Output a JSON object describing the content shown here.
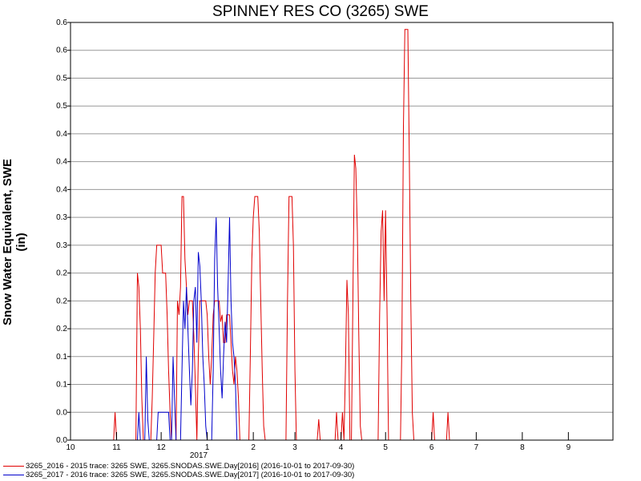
{
  "chart_data": {
    "type": "line",
    "title": "SPINNEY RES CO (3265) SWE",
    "ylabel": "Snow Water Equivalent, SWE (in)",
    "xlabel": "",
    "year_label": "2017",
    "ylim": [
      0,
      0.6
    ],
    "y_tick_labels": [
      "0.0",
      "0.0",
      "0.1",
      "0.1",
      "0.2",
      "0.2",
      "0.2",
      "0.3",
      "0.3",
      "0.4",
      "0.4",
      "0.4",
      "0.5",
      "0.5",
      "0.6",
      "0.6"
    ],
    "x_tick_labels": [
      "10",
      "11",
      "12",
      "1",
      "2",
      "3",
      "4",
      "5",
      "6",
      "7",
      "8",
      "9"
    ],
    "grid": true,
    "legend_position": "bottom",
    "series": [
      {
        "name": "3265_2016 - 2015 trace: 3265 SWE, 3265.SNODAS.SWE.Day[2016] (2016-10-01 to 2017-09-30)",
        "color": "#e00000",
        "points": [
          [
            "2016-10-30",
            0
          ],
          [
            "2016-10-31",
            0.04
          ],
          [
            "2016-11-01",
            0
          ],
          [
            "2016-11-14",
            0
          ],
          [
            "2016-11-15",
            0.24
          ],
          [
            "2016-11-16",
            0.22
          ],
          [
            "2016-11-17",
            0.16
          ],
          [
            "2016-11-18",
            0.06
          ],
          [
            "2016-11-19",
            0
          ],
          [
            "2016-11-24",
            0
          ],
          [
            "2016-11-25",
            0.06
          ],
          [
            "2016-11-26",
            0.15
          ],
          [
            "2016-11-27",
            0.24
          ],
          [
            "2016-11-28",
            0.28
          ],
          [
            "2016-12-01",
            0.28
          ],
          [
            "2016-12-02",
            0.24
          ],
          [
            "2016-12-04",
            0.24
          ],
          [
            "2016-12-05",
            0.18
          ],
          [
            "2016-12-06",
            0.1
          ],
          [
            "2016-12-07",
            0.04
          ],
          [
            "2016-12-08",
            0
          ],
          [
            "2016-12-11",
            0
          ],
          [
            "2016-12-12",
            0.2
          ],
          [
            "2016-12-13",
            0.18
          ],
          [
            "2016-12-14",
            0.22
          ],
          [
            "2016-12-15",
            0.35
          ],
          [
            "2016-12-16",
            0.35
          ],
          [
            "2016-12-17",
            0.26
          ],
          [
            "2016-12-18",
            0.22
          ],
          [
            "2016-12-19",
            0.18
          ],
          [
            "2016-12-20",
            0.2
          ],
          [
            "2016-12-22",
            0.2
          ],
          [
            "2016-12-23",
            0.15
          ],
          [
            "2016-12-24",
            0.08
          ],
          [
            "2016-12-25",
            0
          ],
          [
            "2016-12-26",
            0.12
          ],
          [
            "2016-12-27",
            0.2
          ],
          [
            "2016-12-31",
            0.2
          ],
          [
            "2017-01-01",
            0.18
          ],
          [
            "2017-01-02",
            0.12
          ],
          [
            "2017-01-03",
            0.08
          ],
          [
            "2017-01-04",
            0.12
          ],
          [
            "2017-01-05",
            0.18
          ],
          [
            "2017-01-06",
            0.2
          ],
          [
            "2017-01-09",
            0.2
          ],
          [
            "2017-01-10",
            0.17
          ],
          [
            "2017-01-11",
            0.18
          ],
          [
            "2017-01-12",
            0.14
          ],
          [
            "2017-01-13",
            0.14
          ],
          [
            "2017-01-14",
            0.18
          ],
          [
            "2017-01-16",
            0.18
          ],
          [
            "2017-01-17",
            0.14
          ],
          [
            "2017-01-18",
            0.1
          ],
          [
            "2017-01-19",
            0.08
          ],
          [
            "2017-01-20",
            0.12
          ],
          [
            "2017-01-21",
            0.1
          ],
          [
            "2017-01-22",
            0.06
          ],
          [
            "2017-01-23",
            0
          ],
          [
            "2017-01-29",
            0
          ],
          [
            "2017-01-30",
            0.12
          ],
          [
            "2017-01-31",
            0.26
          ],
          [
            "2017-02-01",
            0.32
          ],
          [
            "2017-02-02",
            0.35
          ],
          [
            "2017-02-04",
            0.35
          ],
          [
            "2017-02-05",
            0.3
          ],
          [
            "2017-02-06",
            0.2
          ],
          [
            "2017-02-07",
            0.1
          ],
          [
            "2017-02-08",
            0.02
          ],
          [
            "2017-02-09",
            0
          ],
          [
            "2017-02-23",
            0
          ],
          [
            "2017-02-24",
            0.2
          ],
          [
            "2017-02-25",
            0.35
          ],
          [
            "2017-02-27",
            0.35
          ],
          [
            "2017-02-28",
            0.28
          ],
          [
            "2017-03-01",
            0.1
          ],
          [
            "2017-03-02",
            0
          ],
          [
            "2017-03-16",
            0
          ],
          [
            "2017-03-17",
            0.03
          ],
          [
            "2017-03-18",
            0
          ],
          [
            "2017-03-28",
            0
          ],
          [
            "2017-03-29",
            0.04
          ],
          [
            "2017-03-30",
            0
          ],
          [
            "2017-04-01",
            0
          ],
          [
            "2017-04-02",
            0.04
          ],
          [
            "2017-04-03",
            0
          ],
          [
            "2017-04-04",
            0.1
          ],
          [
            "2017-04-05",
            0.23
          ],
          [
            "2017-04-06",
            0.18
          ],
          [
            "2017-04-07",
            0
          ],
          [
            "2017-04-08",
            0
          ],
          [
            "2017-04-09",
            0.2
          ],
          [
            "2017-04-10",
            0.41
          ],
          [
            "2017-04-11",
            0.39
          ],
          [
            "2017-04-12",
            0.3
          ],
          [
            "2017-04-13",
            0.15
          ],
          [
            "2017-04-14",
            0.02
          ],
          [
            "2017-04-15",
            0
          ],
          [
            "2017-04-26",
            0
          ],
          [
            "2017-04-27",
            0.18
          ],
          [
            "2017-04-28",
            0.3
          ],
          [
            "2017-04-29",
            0.33
          ],
          [
            "2017-04-30",
            0.2
          ],
          [
            "2017-05-01",
            0.33
          ],
          [
            "2017-05-02",
            0.18
          ],
          [
            "2017-05-03",
            0
          ],
          [
            "2017-05-11",
            0
          ],
          [
            "2017-05-12",
            0.14
          ],
          [
            "2017-05-13",
            0.45
          ],
          [
            "2017-05-14",
            0.59
          ],
          [
            "2017-05-16",
            0.59
          ],
          [
            "2017-05-17",
            0.4
          ],
          [
            "2017-05-18",
            0.2
          ],
          [
            "2017-05-19",
            0.04
          ],
          [
            "2017-05-20",
            0
          ],
          [
            "2017-06-01",
            0
          ],
          [
            "2017-06-02",
            0.04
          ],
          [
            "2017-06-03",
            0
          ],
          [
            "2017-06-11",
            0
          ],
          [
            "2017-06-12",
            0.04
          ],
          [
            "2017-06-13",
            0
          ]
        ]
      },
      {
        "name": "3265_2017 - 2016 trace: 3265 SWE, 3265.SNODAS.SWE.Day[2017] (2016-10-01 to 2017-09-30)",
        "color": "#0000cc",
        "points": [
          [
            "2016-11-15",
            0
          ],
          [
            "2016-11-16",
            0.04
          ],
          [
            "2016-11-17",
            0
          ],
          [
            "2016-11-20",
            0
          ],
          [
            "2016-11-21",
            0.12
          ],
          [
            "2016-11-22",
            0.03
          ],
          [
            "2016-11-23",
            0
          ],
          [
            "2016-11-28",
            0
          ],
          [
            "2016-11-29",
            0.04
          ],
          [
            "2016-12-06",
            0.04
          ],
          [
            "2016-12-07",
            0
          ],
          [
            "2016-12-08",
            0
          ],
          [
            "2016-12-09",
            0.12
          ],
          [
            "2016-12-10",
            0.06
          ],
          [
            "2016-12-11",
            0
          ],
          [
            "2016-12-14",
            0
          ],
          [
            "2016-12-15",
            0.1
          ],
          [
            "2016-12-16",
            0.2
          ],
          [
            "2016-12-17",
            0.16
          ],
          [
            "2016-12-18",
            0.22
          ],
          [
            "2016-12-19",
            0.16
          ],
          [
            "2016-12-20",
            0.1
          ],
          [
            "2016-12-21",
            0.05
          ],
          [
            "2016-12-22",
            0.1
          ],
          [
            "2016-12-23",
            0.2
          ],
          [
            "2016-12-24",
            0.22
          ],
          [
            "2016-12-25",
            0.14
          ],
          [
            "2016-12-26",
            0.27
          ],
          [
            "2016-12-27",
            0.25
          ],
          [
            "2016-12-28",
            0.2
          ],
          [
            "2016-12-29",
            0.12
          ],
          [
            "2016-12-30",
            0.08
          ],
          [
            "2016-12-31",
            0.02
          ],
          [
            "2017-01-01",
            0
          ],
          [
            "2017-01-04",
            0
          ],
          [
            "2017-01-05",
            0.1
          ],
          [
            "2017-01-06",
            0.26
          ],
          [
            "2017-01-07",
            0.32
          ],
          [
            "2017-01-08",
            0.22
          ],
          [
            "2017-01-09",
            0.16
          ],
          [
            "2017-01-10",
            0.1
          ],
          [
            "2017-01-11",
            0.06
          ],
          [
            "2017-01-12",
            0.12
          ],
          [
            "2017-01-13",
            0.17
          ],
          [
            "2017-01-14",
            0.14
          ],
          [
            "2017-01-15",
            0.22
          ],
          [
            "2017-01-16",
            0.32
          ],
          [
            "2017-01-17",
            0.2
          ],
          [
            "2017-01-18",
            0.14
          ],
          [
            "2017-01-19",
            0.12
          ],
          [
            "2017-01-20",
            0.08
          ],
          [
            "2017-01-21",
            0
          ]
        ]
      }
    ]
  }
}
